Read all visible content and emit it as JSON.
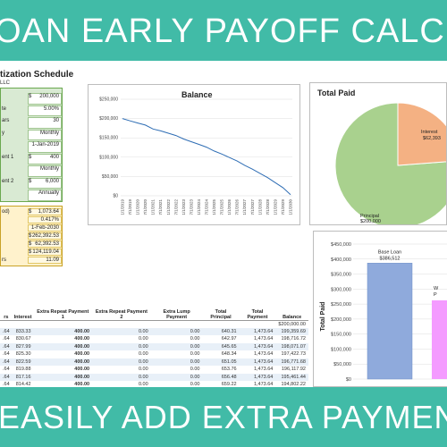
{
  "banner_top": "OAN EARLY PAYOFF CALCULATOR",
  "banner_bottom": "EASILY ADD EXTRA PAYMENTS",
  "schedule": {
    "title": "tization Schedule",
    "subtitle": "LLC"
  },
  "inputs": {
    "rows": [
      {
        "label": "",
        "currency": "$",
        "value": "200,000"
      },
      {
        "label": "te",
        "currency": "",
        "value": "5.00%"
      },
      {
        "label": "ars",
        "currency": "",
        "value": "30"
      },
      {
        "label": "y",
        "currency": "",
        "value": "Monthly"
      },
      {
        "label": "",
        "currency": "",
        "value": "1-Jan-2019"
      },
      {
        "label": "ent 1",
        "currency": "$",
        "value": "400"
      },
      {
        "label": "",
        "currency": "",
        "value": "Monthly"
      },
      {
        "label": "ent 2",
        "currency": "$",
        "value": "6,000"
      },
      {
        "label": "",
        "currency": "",
        "value": "Annually"
      }
    ]
  },
  "results": {
    "rows": [
      {
        "label": "od)",
        "currency": "$",
        "value": "1,073.64"
      },
      {
        "label": "",
        "currency": "",
        "value": "0.417%"
      },
      {
        "label": "",
        "currency": "",
        "value": "1-Feb-2030"
      },
      {
        "label": "",
        "currency": "$",
        "value": "262,392.53"
      },
      {
        "label": "",
        "currency": "$",
        "value": "62,392.53"
      },
      {
        "label": "",
        "currency": "$",
        "value": "124,119.04"
      },
      {
        "label": "rs",
        "currency": "",
        "value": "11.09"
      }
    ]
  },
  "charts": {
    "balance": {
      "title": "Balance",
      "y_ticks": [
        "$250,000",
        "$200,000",
        "$150,000",
        "$100,000",
        "$50,000",
        "$0"
      ],
      "x_ticks": [
        "1/1/2019",
        "7/1/2019",
        "1/1/2020",
        "7/1/2020",
        "1/1/2021",
        "7/1/2021",
        "1/1/2022",
        "7/1/2022",
        "1/1/2023",
        "7/1/2023",
        "1/1/2024",
        "7/1/2024",
        "1/1/2025",
        "7/1/2025",
        "1/1/2026",
        "7/1/2026",
        "1/1/2027",
        "7/1/2027",
        "1/1/2028",
        "7/1/2028",
        "1/1/2029",
        "7/1/2029",
        "1/1/2030"
      ]
    },
    "total_paid": {
      "title": "Total Paid",
      "slice_interest_label": "Interest",
      "slice_interest_value": "$62,393",
      "slice_principal_label": "Principal",
      "slice_principal_value": "$200,000",
      "colors": {
        "interest": "#f4b183",
        "principal": "#a9d18e"
      }
    },
    "comparison": {
      "y_label": "Total Paid",
      "y_ticks": [
        "$450,000",
        "$400,000",
        "$350,000",
        "$300,000",
        "$250,000",
        "$200,000",
        "$150,000",
        "$100,000",
        "$50,000",
        "$0"
      ],
      "bar1_label": "Base Loan",
      "bar1_value_text": "$386,512",
      "bar2_label_line1": "W",
      "bar2_label_line2": "P",
      "colors": {
        "bar1": "#8faadc",
        "bar2": "#f49bff"
      }
    }
  },
  "chart_data": [
    {
      "type": "line",
      "title": "Balance",
      "x": [
        "1/1/2019",
        "7/1/2019",
        "1/1/2020",
        "7/1/2020",
        "1/1/2021",
        "7/1/2021",
        "1/1/2022",
        "7/1/2022",
        "1/1/2023",
        "7/1/2023",
        "1/1/2024",
        "7/1/2024",
        "1/1/2025",
        "7/1/2025",
        "1/1/2026",
        "7/1/2026",
        "1/1/2027",
        "7/1/2027",
        "1/1/2028",
        "7/1/2028",
        "1/1/2029",
        "7/1/2029",
        "1/1/2030"
      ],
      "series": [
        {
          "values": [
            200000,
            194000,
            188500,
            183000,
            173000,
            168000,
            162000,
            156000,
            147000,
            140000,
            133000,
            126000,
            116000,
            108000,
            99000,
            90000,
            79000,
            69000,
            58000,
            47000,
            34000,
            21000,
            3000
          ]
        }
      ],
      "ylim": [
        0,
        250000
      ]
    },
    {
      "type": "pie",
      "title": "Total Paid",
      "categories": [
        "Interest",
        "Principal"
      ],
      "values": [
        62393,
        200000
      ]
    },
    {
      "type": "bar",
      "categories": [
        "Base Loan",
        "With Extra Payments"
      ],
      "values": [
        386512,
        262393
      ],
      "ylabel": "Total Paid",
      "ylim": [
        0,
        450000
      ]
    }
  ],
  "table": {
    "headers": [
      "rs",
      "Interest",
      "Extra Repeat Payment 1",
      "Extra Repeat Payment 2",
      "Extra Lump Payment",
      "Total Principal",
      "Total Payment",
      "Balance"
    ],
    "first_row": [
      "",
      "",
      "",
      "",
      "",
      "",
      "",
      "$200,000.00"
    ],
    "rows": [
      [
        ".64",
        "833.33",
        "400.00",
        "0.00",
        "0.00",
        "640.31",
        "1,473.64",
        "199,359.69"
      ],
      [
        ".64",
        "830.67",
        "400.00",
        "0.00",
        "0.00",
        "642.97",
        "1,473.64",
        "198,716.72"
      ],
      [
        ".64",
        "827.99",
        "400.00",
        "0.00",
        "0.00",
        "645.65",
        "1,473.64",
        "198,071.07"
      ],
      [
        ".64",
        "825.30",
        "400.00",
        "0.00",
        "0.00",
        "648.34",
        "1,473.64",
        "197,422.73"
      ],
      [
        ".64",
        "822.59",
        "400.00",
        "0.00",
        "0.00",
        "651.05",
        "1,473.64",
        "196,771.68"
      ],
      [
        ".64",
        "819.88",
        "400.00",
        "0.00",
        "0.00",
        "653.76",
        "1,473.64",
        "196,117.92"
      ],
      [
        ".64",
        "817.16",
        "400.00",
        "0.00",
        "0.00",
        "656.48",
        "1,473.64",
        "195,461.44"
      ],
      [
        ".64",
        "814.42",
        "400.00",
        "0.00",
        "0.00",
        "659.22",
        "1,473.64",
        "194,802.22"
      ],
      [
        ".64",
        "811.68",
        "400.00",
        "0.00",
        "0.00",
        "661.96",
        "1,473.64",
        "194,140.26"
      ],
      [
        ".64",
        "808.92",
        "400.00",
        "0.00",
        "0.00",
        "664.72",
        "1,473.64",
        "193,475.54"
      ]
    ]
  }
}
